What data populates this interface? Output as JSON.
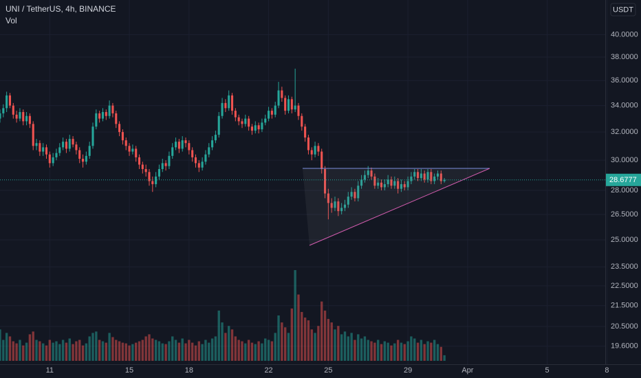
{
  "chart_data": {
    "type": "candlestick",
    "title": "UNI / TetherUS, 4h, BINANCE",
    "volume_label": "Vol",
    "currency": "USDT",
    "log_scale": true,
    "grid": true,
    "up_color": "#26a69a",
    "down_color": "#ef5350",
    "ylim": [
      18.95,
      43.3
    ],
    "yticks": [
      {
        "value": 40,
        "label": "40.0000"
      },
      {
        "value": 38,
        "label": "38.0000"
      },
      {
        "value": 36,
        "label": "36.0000"
      },
      {
        "value": 34,
        "label": "34.0000"
      },
      {
        "value": 32,
        "label": "32.0000"
      },
      {
        "value": 30,
        "label": "30.0000"
      },
      {
        "value": 28,
        "label": "28.0000"
      },
      {
        "value": 26.5,
        "label": "26.5000"
      },
      {
        "value": 25,
        "label": "25.0000"
      },
      {
        "value": 23.5,
        "label": "23.5000"
      },
      {
        "value": 22.5,
        "label": "22.5000"
      },
      {
        "value": 21.5,
        "label": "21.5000"
      },
      {
        "value": 20.5,
        "label": "20.5000"
      },
      {
        "value": 19.6,
        "label": "19.6000"
      }
    ],
    "xlim": [
      0,
      182.5
    ],
    "xticks": [
      {
        "value": 15,
        "label": "11"
      },
      {
        "value": 39,
        "label": "15"
      },
      {
        "value": 57,
        "label": "18"
      },
      {
        "value": 81,
        "label": "22"
      },
      {
        "value": 99,
        "label": "25"
      },
      {
        "value": 123,
        "label": "29"
      },
      {
        "value": 141,
        "label": "Apr"
      },
      {
        "value": 165,
        "label": "5"
      },
      {
        "value": 183,
        "label": "8"
      }
    ],
    "ohlc": [
      [
        33.0,
        33.7,
        32.7,
        33.4
      ],
      [
        33.4,
        34.1,
        33.1,
        33.8
      ],
      [
        33.8,
        35.1,
        33.5,
        34.8
      ],
      [
        34.8,
        35.0,
        33.8,
        34.0
      ],
      [
        34.0,
        34.2,
        33.0,
        33.3
      ],
      [
        33.3,
        33.6,
        32.7,
        33.0
      ],
      [
        33.0,
        33.8,
        32.8,
        33.5
      ],
      [
        33.5,
        33.7,
        32.5,
        32.8
      ],
      [
        32.8,
        33.5,
        32.5,
        33.2
      ],
      [
        33.2,
        33.4,
        32.3,
        32.6
      ],
      [
        32.6,
        32.8,
        30.7,
        31.0
      ],
      [
        31.0,
        31.5,
        30.7,
        31.2
      ],
      [
        31.2,
        31.4,
        30.3,
        30.6
      ],
      [
        30.6,
        31.2,
        30.3,
        30.9
      ],
      [
        30.9,
        31.1,
        30.1,
        30.4
      ],
      [
        30.4,
        30.6,
        29.5,
        29.8
      ],
      [
        29.8,
        30.5,
        29.6,
        30.2
      ],
      [
        30.2,
        30.8,
        30.0,
        30.5
      ],
      [
        30.5,
        31.2,
        30.3,
        30.9
      ],
      [
        30.9,
        31.6,
        30.7,
        31.3
      ],
      [
        31.3,
        31.5,
        30.5,
        30.8
      ],
      [
        30.8,
        31.8,
        30.6,
        31.5
      ],
      [
        31.5,
        31.7,
        30.9,
        31.1
      ],
      [
        31.1,
        31.3,
        30.4,
        30.7
      ],
      [
        30.7,
        30.9,
        29.8,
        30.1
      ],
      [
        30.1,
        30.4,
        29.5,
        29.9
      ],
      [
        29.9,
        30.6,
        29.7,
        30.3
      ],
      [
        30.3,
        31.3,
        30.1,
        31.0
      ],
      [
        31.0,
        32.7,
        30.8,
        32.4
      ],
      [
        32.4,
        33.7,
        32.2,
        33.4
      ],
      [
        33.4,
        33.6,
        32.7,
        33.0
      ],
      [
        33.0,
        33.8,
        32.8,
        33.5
      ],
      [
        33.5,
        33.7,
        32.9,
        33.2
      ],
      [
        33.2,
        34.4,
        33.0,
        34.0
      ],
      [
        34.0,
        34.2,
        33.1,
        33.4
      ],
      [
        33.4,
        33.6,
        32.3,
        32.6
      ],
      [
        32.6,
        32.8,
        31.7,
        32.0
      ],
      [
        32.0,
        32.2,
        31.1,
        31.4
      ],
      [
        31.4,
        31.6,
        30.7,
        31.0
      ],
      [
        31.0,
        31.2,
        30.3,
        30.6
      ],
      [
        30.6,
        31.1,
        30.4,
        30.8
      ],
      [
        30.8,
        31.0,
        29.9,
        30.2
      ],
      [
        30.2,
        30.4,
        29.4,
        29.7
      ],
      [
        29.7,
        29.9,
        29.1,
        29.4
      ],
      [
        29.4,
        29.7,
        28.9,
        29.2
      ],
      [
        29.2,
        29.4,
        28.3,
        28.6
      ],
      [
        28.6,
        28.9,
        27.9,
        28.4
      ],
      [
        28.4,
        29.2,
        28.2,
        28.9
      ],
      [
        28.9,
        29.7,
        28.7,
        29.4
      ],
      [
        29.4,
        30.1,
        29.2,
        29.8
      ],
      [
        29.8,
        30.0,
        29.3,
        29.6
      ],
      [
        29.6,
        30.6,
        29.4,
        30.3
      ],
      [
        30.3,
        31.2,
        30.1,
        30.9
      ],
      [
        30.9,
        31.6,
        30.7,
        31.3
      ],
      [
        31.3,
        31.5,
        30.5,
        30.8
      ],
      [
        30.8,
        31.7,
        30.6,
        31.4
      ],
      [
        31.4,
        31.6,
        30.9,
        31.2
      ],
      [
        31.2,
        31.4,
        30.4,
        30.7
      ],
      [
        30.7,
        30.9,
        29.9,
        30.2
      ],
      [
        30.2,
        30.4,
        29.5,
        29.8
      ],
      [
        29.8,
        30.0,
        29.2,
        29.5
      ],
      [
        29.5,
        30.2,
        29.3,
        29.9
      ],
      [
        29.9,
        30.7,
        29.7,
        30.4
      ],
      [
        30.4,
        31.2,
        30.2,
        30.9
      ],
      [
        30.9,
        31.7,
        30.7,
        31.4
      ],
      [
        31.4,
        32.1,
        31.2,
        31.8
      ],
      [
        31.8,
        33.5,
        31.6,
        33.2
      ],
      [
        33.2,
        34.6,
        33.0,
        34.2
      ],
      [
        34.2,
        34.5,
        33.5,
        33.8
      ],
      [
        33.8,
        35.2,
        33.6,
        34.8
      ],
      [
        34.8,
        35.0,
        33.3,
        33.6
      ],
      [
        33.6,
        33.8,
        32.8,
        33.1
      ],
      [
        33.1,
        33.3,
        32.5,
        32.8
      ],
      [
        32.8,
        33.0,
        32.3,
        32.6
      ],
      [
        32.6,
        33.3,
        32.4,
        33.0
      ],
      [
        33.0,
        33.2,
        32.1,
        32.4
      ],
      [
        32.4,
        32.6,
        31.8,
        32.1
      ],
      [
        32.1,
        32.8,
        31.9,
        32.5
      ],
      [
        32.5,
        32.7,
        31.9,
        32.2
      ],
      [
        32.2,
        33.0,
        32.0,
        32.7
      ],
      [
        32.7,
        33.3,
        32.5,
        33.0
      ],
      [
        33.0,
        33.9,
        32.8,
        33.6
      ],
      [
        33.6,
        33.8,
        33.0,
        33.3
      ],
      [
        33.3,
        34.3,
        33.1,
        34.0
      ],
      [
        34.0,
        35.9,
        33.8,
        35.2
      ],
      [
        35.2,
        35.5,
        34.3,
        34.6
      ],
      [
        34.6,
        34.8,
        33.3,
        33.6
      ],
      [
        33.6,
        34.8,
        33.4,
        34.5
      ],
      [
        34.5,
        34.7,
        33.4,
        33.7
      ],
      [
        33.7,
        37.0,
        33.5,
        34.0
      ],
      [
        34.0,
        34.2,
        32.9,
        33.2
      ],
      [
        33.2,
        33.4,
        32.1,
        32.4
      ],
      [
        32.4,
        32.6,
        31.3,
        31.6
      ],
      [
        31.6,
        31.8,
        30.4,
        30.7
      ],
      [
        30.7,
        30.9,
        30.0,
        30.4
      ],
      [
        30.4,
        31.3,
        30.2,
        31.0
      ],
      [
        31.0,
        31.2,
        30.3,
        30.6
      ],
      [
        30.6,
        30.8,
        29.1,
        29.4
      ],
      [
        29.4,
        29.6,
        27.5,
        27.8
      ],
      [
        27.8,
        28.1,
        26.2,
        27.2
      ],
      [
        27.2,
        27.5,
        26.6,
        26.9
      ],
      [
        26.9,
        27.6,
        26.7,
        27.3
      ],
      [
        27.3,
        27.5,
        26.4,
        26.7
      ],
      [
        26.7,
        27.2,
        26.5,
        26.9
      ],
      [
        26.9,
        27.4,
        26.7,
        27.1
      ],
      [
        27.1,
        27.9,
        26.9,
        27.6
      ],
      [
        27.6,
        28.2,
        27.4,
        27.9
      ],
      [
        27.9,
        28.1,
        27.3,
        27.5
      ],
      [
        27.5,
        28.6,
        27.3,
        28.3
      ],
      [
        28.3,
        29.0,
        28.1,
        28.7
      ],
      [
        28.7,
        29.3,
        28.5,
        29.0
      ],
      [
        29.0,
        29.6,
        28.8,
        29.3
      ],
      [
        29.3,
        29.5,
        28.7,
        28.9
      ],
      [
        28.9,
        29.1,
        28.1,
        28.3
      ],
      [
        28.3,
        28.8,
        28.1,
        28.5
      ],
      [
        28.5,
        28.7,
        28.0,
        28.2
      ],
      [
        28.2,
        28.7,
        28.0,
        28.4
      ],
      [
        28.4,
        29.0,
        28.2,
        28.7
      ],
      [
        28.7,
        28.9,
        28.1,
        28.3
      ],
      [
        28.3,
        28.9,
        28.1,
        28.6
      ],
      [
        28.6,
        28.8,
        27.8,
        28.1
      ],
      [
        28.1,
        28.7,
        27.9,
        28.4
      ],
      [
        28.4,
        28.6,
        28.0,
        28.2
      ],
      [
        28.2,
        28.9,
        28.0,
        28.6
      ],
      [
        28.6,
        29.2,
        28.4,
        28.9
      ],
      [
        28.9,
        29.4,
        28.7,
        29.2
      ],
      [
        29.2,
        29.4,
        28.6,
        28.8
      ],
      [
        28.8,
        29.4,
        28.6,
        29.1
      ],
      [
        29.1,
        29.3,
        28.5,
        28.7
      ],
      [
        28.7,
        29.4,
        28.5,
        29.2
      ],
      [
        29.2,
        29.4,
        28.4,
        28.6
      ],
      [
        28.6,
        29.1,
        28.4,
        28.9
      ],
      [
        28.9,
        29.3,
        28.7,
        29.1
      ],
      [
        29.1,
        29.3,
        28.4,
        28.6
      ],
      [
        28.6,
        28.8,
        28.5,
        28.6777
      ]
    ],
    "volume": [
      45,
      30,
      40,
      35,
      28,
      25,
      30,
      22,
      26,
      38,
      42,
      30,
      28,
      25,
      22,
      30,
      26,
      28,
      24,
      30,
      26,
      32,
      24,
      28,
      30,
      22,
      25,
      35,
      40,
      42,
      30,
      28,
      26,
      40,
      34,
      30,
      28,
      26,
      25,
      22,
      24,
      26,
      28,
      30,
      35,
      38,
      32,
      30,
      28,
      25,
      24,
      28,
      35,
      30,
      26,
      32,
      25,
      30,
      26,
      22,
      28,
      24,
      30,
      26,
      32,
      35,
      72,
      55,
      40,
      50,
      45,
      35,
      30,
      28,
      25,
      30,
      26,
      24,
      28,
      25,
      32,
      30,
      28,
      40,
      65,
      55,
      48,
      40,
      75,
      130,
      95,
      70,
      62,
      58,
      45,
      40,
      50,
      85,
      72,
      60,
      55,
      45,
      50,
      38,
      42,
      35,
      40,
      30,
      38,
      32,
      35,
      30,
      28,
      26,
      30,
      24,
      28,
      26,
      22,
      25,
      30,
      26,
      24,
      28,
      35,
      32,
      26,
      30,
      24,
      28,
      26,
      30,
      24,
      20,
      8
    ]
  }
}
